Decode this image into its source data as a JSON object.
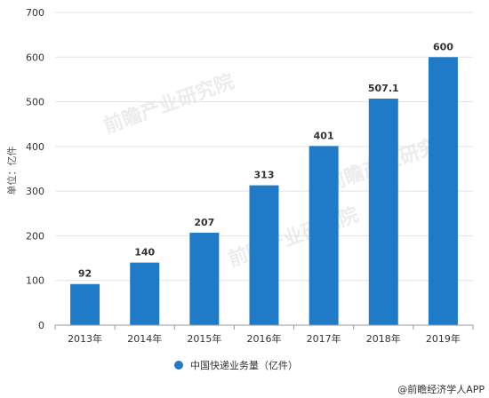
{
  "chart_data": {
    "type": "bar",
    "categories": [
      "2013年",
      "2014年",
      "2015年",
      "2016年",
      "2017年",
      "2018年",
      "2019年"
    ],
    "series": [
      {
        "name": "中国快递业务量（亿件）",
        "values": [
          92,
          140,
          207,
          313,
          401,
          507.1,
          600
        ],
        "color": "#1f7bc7"
      }
    ],
    "data_labels": [
      "92",
      "140",
      "207",
      "313",
      "401",
      "507.1",
      "600"
    ],
    "ylabel": "单位：亿件",
    "xlabel": "",
    "ylim": [
      0,
      700
    ],
    "yticks": [
      0,
      100,
      200,
      300,
      400,
      500,
      600,
      700
    ],
    "grid": true,
    "legend_position": "bottom-center"
  },
  "watermark": {
    "brand": "前瞻产业研究院"
  },
  "footer": {
    "source": "@前瞻经济学人APP"
  },
  "colors": {
    "bar": "#1f7bc7",
    "grid": "#e3e3e3",
    "axis": "#999999"
  }
}
